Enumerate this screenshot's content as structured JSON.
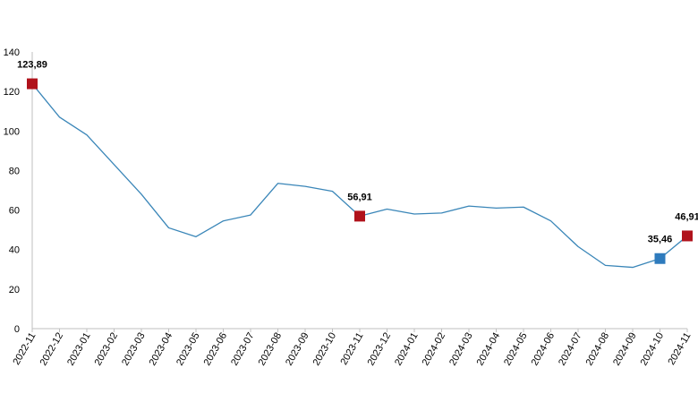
{
  "chart_data": {
    "type": "line",
    "title": "",
    "xlabel": "",
    "ylabel": "",
    "ylim": [
      0,
      140
    ],
    "yticks": [
      0,
      20,
      40,
      60,
      80,
      100,
      120,
      140
    ],
    "grid": false,
    "legend": "none",
    "x": [
      "2022-11",
      "2022-12",
      "2023-01",
      "2023-02",
      "2023-03",
      "2023-04",
      "2023-05",
      "2023-06",
      "2023-07",
      "2023-08",
      "2023-09",
      "2023-10",
      "2023-11",
      "2023-12",
      "2024-01",
      "2024-02",
      "2024-03",
      "2024-04",
      "2024-05",
      "2024-06",
      "2024-07",
      "2024-08",
      "2024-09",
      "2024-10",
      "2024-11"
    ],
    "series": [
      {
        "values": [
          123.89,
          107,
          98,
          83,
          68,
          51,
          46.5,
          54.5,
          57.5,
          73.5,
          72,
          69.5,
          56.91,
          60.5,
          58,
          58.5,
          62,
          61,
          61.5,
          54.5,
          41.5,
          32,
          31,
          35.46,
          46.91
        ],
        "color": "#3a86b8"
      }
    ],
    "highlights": [
      {
        "index": 0,
        "label": "123,89",
        "color": "#b0121b"
      },
      {
        "index": 12,
        "label": "56,91",
        "color": "#b0121b"
      },
      {
        "index": 23,
        "label": "35,46",
        "color": "#2e7bbd"
      },
      {
        "index": 24,
        "label": "46,91",
        "color": "#b0121b"
      }
    ],
    "axis_color": "#bfbfbf"
  }
}
